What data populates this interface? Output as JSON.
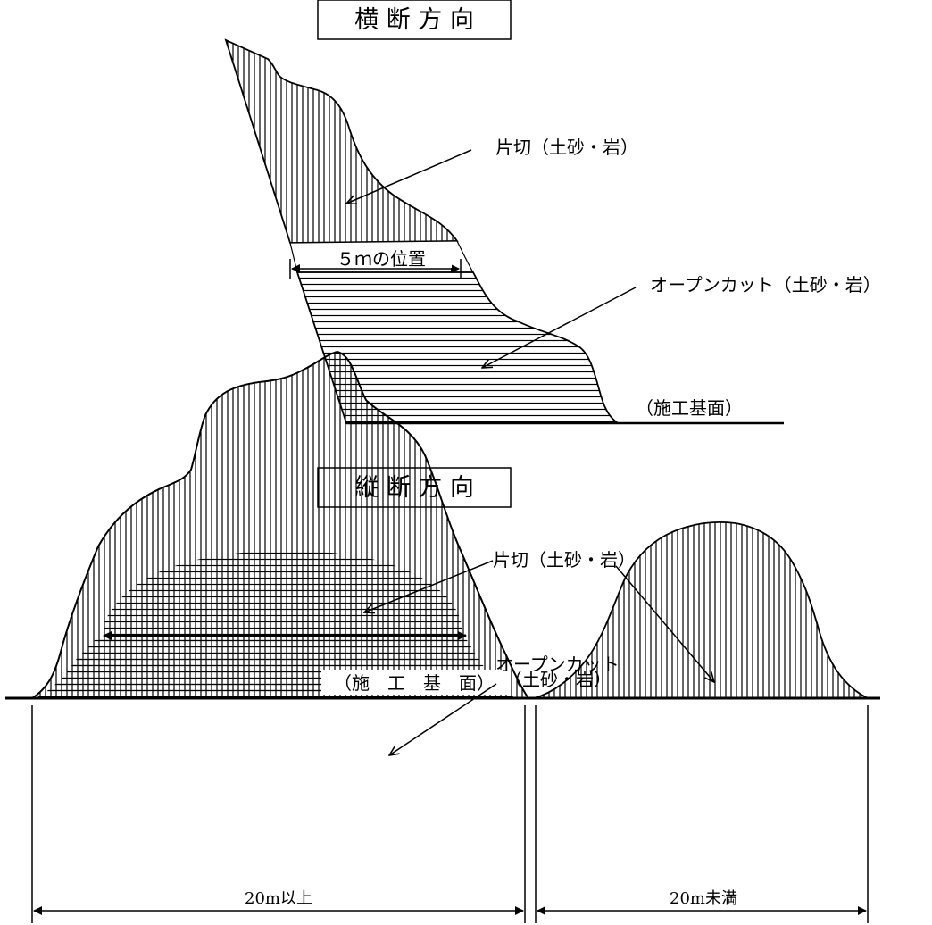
{
  "cross_section": {
    "title": "横 断 方 向",
    "label_katagiri": "片切（土砂・岩）",
    "label_position": "５ｍの位置",
    "label_opencut": "オープンカット（土砂・岩）",
    "label_base": "（施工基面）"
  },
  "longitudinal": {
    "title": "縦 断 方 向",
    "label_katagiri": "片切（土砂・岩）",
    "label_opencut_line1": "オープンカット",
    "label_opencut_line2": "（土砂・岩）",
    "label_base": "（施　工　基　面）",
    "dim_left": "20m以上",
    "dim_right": "20m未満"
  }
}
